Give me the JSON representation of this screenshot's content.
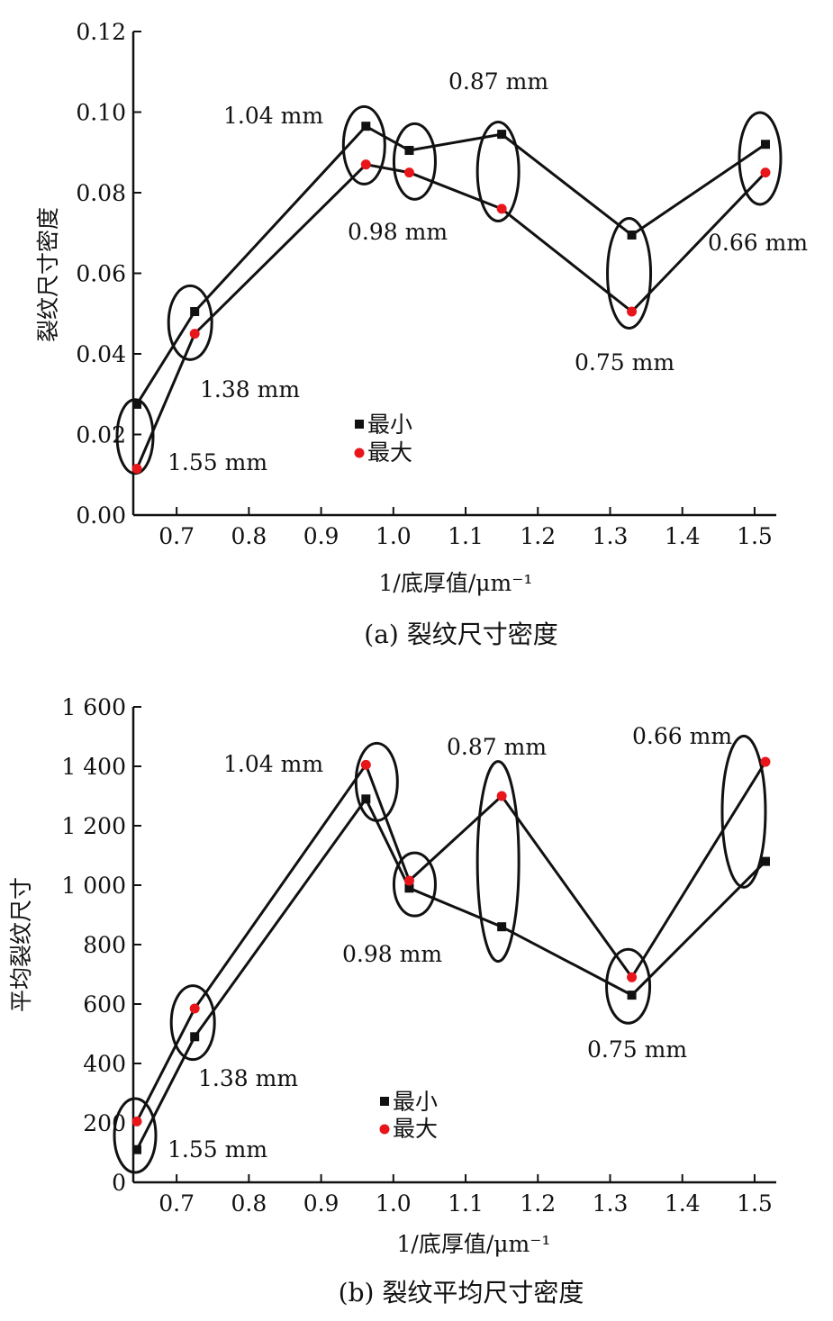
{
  "chart_data": [
    {
      "type": "line",
      "caption": "(a) 裂纹尺寸密度",
      "xlabel": "1/底厚值/μm⁻¹",
      "ylabel": "裂纹尺寸密度",
      "xlim": [
        0.64,
        1.53
      ],
      "ylim": [
        0,
        0.12
      ],
      "x_ticks": [
        "0.7",
        "0.8",
        "0.9",
        "1.0",
        "1.1",
        "1.2",
        "1.3",
        "1.4",
        "1.5"
      ],
      "y_ticks": [
        "0.00",
        "0.02",
        "0.04",
        "0.06",
        "0.08",
        "0.10",
        "0.12"
      ],
      "x": [
        0.645,
        0.725,
        0.962,
        1.022,
        1.15,
        1.33,
        1.515
      ],
      "series": [
        {
          "name": "最小",
          "marker": "square",
          "color": "#111111",
          "values": [
            0.0275,
            0.0505,
            0.0965,
            0.0905,
            0.0945,
            0.0695,
            0.092
          ]
        },
        {
          "name": "最大",
          "marker": "circle",
          "color": "#e8161b",
          "values": [
            0.0115,
            0.045,
            0.087,
            0.085,
            0.076,
            0.0505,
            0.085
          ]
        }
      ],
      "annotations": [
        "1.55 mm",
        "1.38 mm",
        "1.04 mm",
        "0.98 mm",
        "0.87 mm",
        "0.75 mm",
        "0.66 mm"
      ],
      "legend_position": "center-bottom",
      "grid": false
    },
    {
      "type": "line",
      "caption": "(b) 裂纹平均尺寸密度",
      "xlabel": "1/底厚值/μm⁻¹",
      "ylabel": "平均裂纹尺寸",
      "xlim": [
        0.64,
        1.53
      ],
      "ylim": [
        0,
        1600
      ],
      "x_ticks": [
        "0.7",
        "0.8",
        "0.9",
        "1.0",
        "1.1",
        "1.2",
        "1.3",
        "1.4",
        "1.5"
      ],
      "y_ticks": [
        "0",
        "200",
        "400",
        "600",
        "800",
        "1 000",
        "1 200",
        "1 400",
        "1 600"
      ],
      "x": [
        0.645,
        0.725,
        0.962,
        1.022,
        1.15,
        1.33,
        1.515
      ],
      "series": [
        {
          "name": "最小",
          "marker": "square",
          "color": "#111111",
          "values": [
            110,
            490,
            1290,
            990,
            860,
            630,
            1080
          ]
        },
        {
          "name": "最大",
          "marker": "circle",
          "color": "#e8161b",
          "values": [
            205,
            585,
            1405,
            1015,
            1300,
            690,
            1415
          ]
        }
      ],
      "annotations": [
        "1.55 mm",
        "1.38 mm",
        "1.04 mm",
        "0.98 mm",
        "0.87 mm",
        "0.75 mm",
        "0.66 mm"
      ],
      "legend_position": "center-bottom",
      "grid": false
    }
  ]
}
